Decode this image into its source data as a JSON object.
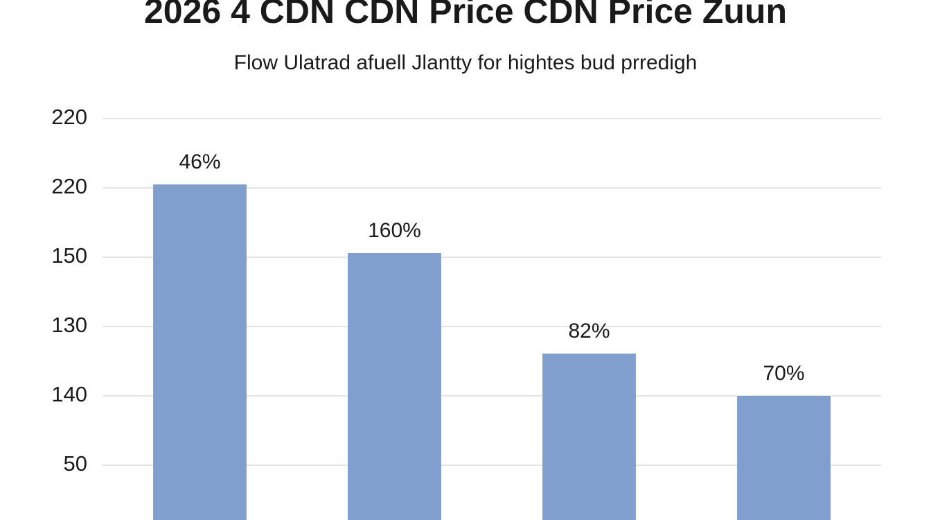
{
  "chart_data": {
    "type": "bar",
    "title": "2026 4 CDN CDN Price CDN Price Zuun",
    "subtitle": "Flow Ulatrad afuell Jlantty for hightes bud prredigh",
    "categories": [
      null,
      null,
      null,
      null
    ],
    "values": [
      5.05,
      4.06,
      2.61,
      2.0
    ],
    "annotations": [
      "46%",
      "160%",
      "82%",
      "70%"
    ],
    "color": "#809fcf",
    "ylim": [
      0,
      6
    ],
    "yticks": [
      {
        "value": 6,
        "label": "220"
      },
      {
        "value": 5,
        "label": "220"
      },
      {
        "value": 4,
        "label": "150"
      },
      {
        "value": 3,
        "label": "130"
      },
      {
        "value": 2,
        "label": "140"
      },
      {
        "value": 1,
        "label": "50"
      }
    ],
    "grid": true
  }
}
